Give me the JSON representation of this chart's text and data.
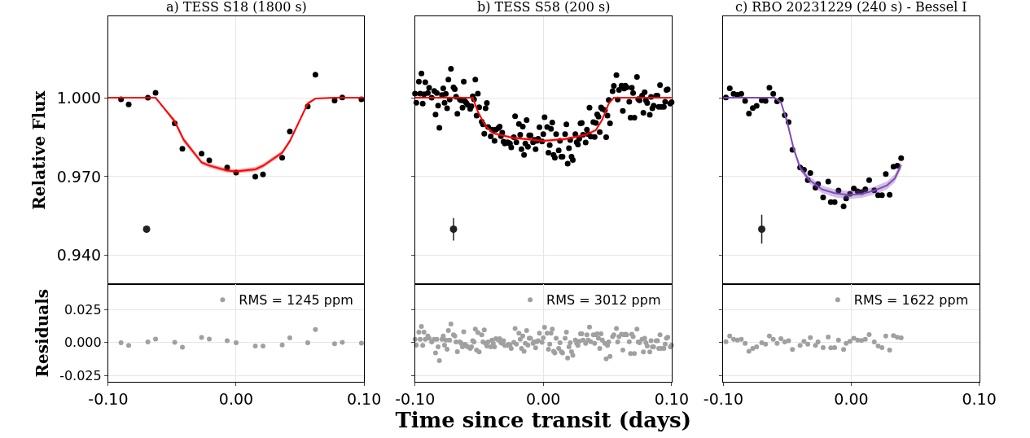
{
  "chart_data": [
    {
      "type": "scatter",
      "title": "a) TESS S18 (1800 s)",
      "ylabel": "Relative Flux",
      "xlim": [
        -0.1,
        0.1
      ],
      "xticks": [
        {
          "value": -0.1,
          "label": null
        },
        {
          "value": 0,
          "label": null
        },
        {
          "value": 0.1,
          "label": null
        }
      ],
      "ylim": [
        0.929,
        1.031
      ],
      "yticks": [
        {
          "value": 0.94,
          "label": "0.940"
        },
        {
          "value": 0.97,
          "label": "0.970"
        },
        {
          "value": 1.0,
          "label": "1.000"
        }
      ],
      "grid": true,
      "tick_labels": "y",
      "x": [
        -0.09,
        -0.084,
        -0.069,
        -0.063,
        -0.048,
        -0.042,
        -0.027,
        -0.021,
        -0.007,
        0.0,
        0.015,
        0.021,
        0.036,
        0.042,
        0.056,
        0.062,
        0.077,
        0.083,
        0.098
      ],
      "series": [
        {
          "color": "#000000",
          "marker": "circle",
          "values": [
            0.9994,
            0.9975,
            1.0,
            1.0019,
            0.9903,
            0.9806,
            0.9787,
            0.9762,
            0.9735,
            0.9715,
            0.97,
            0.9708,
            0.9772,
            0.9872,
            0.9967,
            1.0088,
            0.9989,
            1.0001,
            0.9994
          ]
        },
        {
          "type": "line",
          "color": "#ff0000",
          "marker": "none",
          "x": [
            -0.1,
            -0.063,
            -0.048,
            -0.041,
            -0.027,
            -0.021,
            -0.007,
            0.0,
            0.015,
            0.021,
            0.036,
            0.042,
            0.056,
            0.062,
            0.077,
            0.1
          ],
          "values": [
            1.0,
            1.0,
            0.991,
            0.984,
            0.9754,
            0.9742,
            0.9723,
            0.972,
            0.9728,
            0.9741,
            0.9791,
            0.9835,
            0.9978,
            0.9997,
            1.0,
            1.0
          ],
          "lower": [
            1.0,
            1.0,
            0.99,
            0.983,
            0.9746,
            0.9734,
            0.9715,
            0.9712,
            0.972,
            0.9733,
            0.9783,
            0.9827,
            0.9971,
            0.9995,
            1.0,
            1.0
          ],
          "upper": [
            1.0,
            1.0,
            0.992,
            0.985,
            0.9762,
            0.975,
            0.9731,
            0.9728,
            0.9736,
            0.9749,
            0.9799,
            0.9843,
            0.9985,
            0.9999,
            1.0,
            1.0
          ]
        },
        {
          "color": "#222222",
          "marker": "circle",
          "x": [
            -0.07
          ],
          "values": [
            0.95
          ],
          "errors": [
            0.0008
          ]
        }
      ]
    },
    {
      "type": "scatter",
      "title": "b) TESS S58 (200 s)",
      "xlim": [
        -0.1,
        0.1
      ],
      "xticks": [
        {
          "value": -0.1,
          "label": null
        },
        {
          "value": 0,
          "label": null
        },
        {
          "value": 0.1,
          "label": null
        }
      ],
      "ylim": [
        0.929,
        1.031
      ],
      "yticks": [
        {
          "value": 0.94,
          "label": null
        },
        {
          "value": 0.97,
          "label": null
        },
        {
          "value": 1.0,
          "label": null
        }
      ],
      "grid": true,
      "tick_labels": false,
      "x": [
        -0.1,
        -0.099,
        -0.097,
        -0.096,
        -0.095,
        -0.094,
        -0.093,
        -0.092,
        -0.09,
        -0.089,
        -0.087,
        -0.085,
        -0.084,
        -0.083,
        -0.082,
        -0.081,
        -0.079,
        -0.078,
        -0.077,
        -0.076,
        -0.075,
        -0.074,
        -0.073,
        -0.072,
        -0.07,
        -0.069,
        -0.068,
        -0.067,
        -0.065,
        -0.064,
        -0.063,
        -0.062,
        -0.061,
        -0.06,
        -0.059,
        -0.057,
        -0.056,
        -0.055,
        -0.054,
        -0.053,
        -0.052,
        -0.051,
        -0.05,
        -0.048,
        -0.047,
        -0.046,
        -0.045,
        -0.044,
        -0.043,
        -0.041,
        -0.04,
        -0.039,
        -0.038,
        -0.037,
        -0.035,
        -0.034,
        -0.033,
        -0.032,
        -0.031,
        -0.03,
        -0.028,
        -0.027,
        -0.026,
        -0.025,
        -0.023,
        -0.022,
        -0.021,
        -0.019,
        -0.018,
        -0.017,
        -0.016,
        -0.015,
        -0.014,
        -0.013,
        -0.012,
        -0.011,
        -0.01,
        -0.008,
        -0.007,
        -0.006,
        -0.005,
        -0.004,
        -0.003,
        -0.001,
        0.0,
        0.001,
        0.003,
        0.004,
        0.005,
        0.006,
        0.007,
        0.008,
        0.009,
        0.01,
        0.012,
        0.013,
        0.014,
        0.015,
        0.017,
        0.018,
        0.019,
        0.02,
        0.021,
        0.022,
        0.023,
        0.025,
        0.026,
        0.027,
        0.028,
        0.029,
        0.03,
        0.031,
        0.033,
        0.034,
        0.035,
        0.036,
        0.037,
        0.039,
        0.04,
        0.041,
        0.042,
        0.043,
        0.044,
        0.045,
        0.046,
        0.048,
        0.049,
        0.05,
        0.051,
        0.052,
        0.054,
        0.055,
        0.057,
        0.058,
        0.059,
        0.061,
        0.062,
        0.063,
        0.064,
        0.065,
        0.067,
        0.068,
        0.069,
        0.07,
        0.071,
        0.073,
        0.074,
        0.075,
        0.077,
        0.078,
        0.079,
        0.08,
        0.081,
        0.083,
        0.084,
        0.085,
        0.086,
        0.088,
        0.089,
        0.09,
        0.091,
        0.092,
        0.094,
        0.095,
        0.096,
        0.097,
        0.099,
        0.1
      ],
      "series": [
        {
          "color": "#000000",
          "marker": "circle",
          "values": [
            1.0016,
            0.9981,
            1.0061,
            1.0016,
            1.0092,
            0.9978,
            1.0013,
            1.0059,
            1.0018,
            1.0038,
            1.0,
            1.0026,
            0.9936,
            1.0018,
            0.997,
            0.9886,
            1.001,
            1.0036,
            0.9981,
            1.0015,
            0.996,
            1.0069,
            0.9993,
            1.011,
            1.004,
            1.0033,
            1.0004,
            0.9939,
            0.9993,
            0.999,
            0.9962,
            1.0061,
            0.9986,
            0.998,
            0.9973,
            0.9958,
            0.9968,
            1.0006,
            0.9994,
            1.0069,
            0.9932,
            1.0016,
            0.9964,
            0.9909,
            0.9899,
            0.9863,
            0.996,
            0.998,
            0.9889,
            0.9853,
            0.9879,
            0.9877,
            0.9836,
            0.9879,
            0.9885,
            0.989,
            0.9854,
            0.9867,
            0.9833,
            0.9826,
            0.9831,
            0.9828,
            0.9826,
            0.9811,
            0.985,
            0.993,
            0.9831,
            0.99,
            0.9859,
            0.9804,
            0.989,
            0.9783,
            0.9826,
            0.9915,
            0.9814,
            0.9857,
            0.9857,
            0.9831,
            0.984,
            0.9804,
            0.9836,
            0.9844,
            0.9888,
            0.9834,
            0.9862,
            0.9926,
            0.9889,
            0.9791,
            0.982,
            0.9882,
            0.9906,
            0.9783,
            0.9772,
            0.9862,
            0.98,
            0.9836,
            0.9776,
            0.9776,
            0.9862,
            0.9899,
            0.9749,
            0.9808,
            0.9839,
            0.9776,
            0.9763,
            0.9862,
            0.9831,
            0.9822,
            0.9844,
            0.9903,
            0.9904,
            0.9859,
            0.983,
            0.9879,
            0.9862,
            0.9962,
            0.9852,
            0.9907,
            0.9851,
            0.9904,
            0.9937,
            0.9928,
            0.9869,
            0.9963,
            0.9958,
            0.9953,
            0.985,
            0.9932,
            0.9992,
            0.9903,
            1.0025,
            1.0045,
            1.0086,
            0.9993,
            1.003,
            1.0046,
            0.995,
            1.0035,
            1.0046,
            1.004,
            0.9985,
            0.9924,
            1.0038,
            1.0018,
            0.9924,
            1.0079,
            0.9995,
            0.999,
            1.0008,
            0.9943,
            1.0021,
            0.999,
            0.998,
            0.9935,
            1.0003,
            0.996,
            0.997,
            1.0008,
            1.0008,
            0.9965,
            1.0048,
            0.9965,
            0.9965,
            0.9985,
            1.003,
            1.0032,
            0.9978,
            0.9983
          ]
        },
        {
          "type": "line",
          "color": "#ff0000",
          "marker": "none",
          "x": [
            -0.1,
            -0.055,
            -0.051,
            -0.045,
            -0.039,
            -0.024,
            0.0,
            0.017,
            0.033,
            0.041,
            0.046,
            0.051,
            0.055,
            0.1
          ],
          "values": [
            1.0,
            1.0,
            0.9947,
            0.9892,
            0.9865,
            0.9848,
            0.9836,
            0.9843,
            0.9859,
            0.9877,
            0.9917,
            0.9978,
            1.0,
            1.0
          ],
          "lower": [
            1.0,
            1.0,
            0.9942,
            0.9887,
            0.986,
            0.9843,
            0.9831,
            0.9838,
            0.9854,
            0.9872,
            0.9912,
            0.9973,
            1.0,
            1.0
          ],
          "upper": [
            1.0,
            1.0,
            0.9952,
            0.9897,
            0.987,
            0.9853,
            0.9841,
            0.9848,
            0.9864,
            0.9882,
            0.9922,
            0.9983,
            1.0,
            1.0
          ]
        },
        {
          "color": "#222222",
          "marker": "circle",
          "x": [
            -0.07
          ],
          "values": [
            0.95
          ],
          "errors": [
            0.0043
          ]
        }
      ]
    },
    {
      "type": "scatter",
      "title": "c) RBO 20231229 (240 s) - Bessel I",
      "xlim": [
        -0.1,
        0.1
      ],
      "xticks": [
        {
          "value": -0.1,
          "label": null
        },
        {
          "value": 0,
          "label": null
        },
        {
          "value": 0.1,
          "label": null
        }
      ],
      "ylim": [
        0.929,
        1.031
      ],
      "yticks": [
        {
          "value": 0.94,
          "label": null
        },
        {
          "value": 0.97,
          "label": null
        },
        {
          "value": 1.0,
          "label": null
        }
      ],
      "grid": true,
      "tick_labels": false,
      "x": [
        -0.098,
        -0.095,
        -0.092,
        -0.089,
        -0.086,
        -0.083,
        -0.08,
        -0.077,
        -0.074,
        -0.07,
        -0.067,
        -0.064,
        -0.061,
        -0.058,
        -0.055,
        -0.052,
        -0.049,
        -0.046,
        -0.04,
        -0.037,
        -0.034,
        -0.032,
        -0.028,
        -0.026,
        -0.022,
        -0.018,
        -0.016,
        -0.013,
        -0.01,
        -0.006,
        -0.004,
        -0.001,
        0.002,
        0.005,
        0.008,
        0.011,
        0.014,
        0.018,
        0.021,
        0.024,
        0.027,
        0.03,
        0.033,
        0.036,
        0.039
      ],
      "series": [
        {
          "color": "#000000",
          "marker": "circle",
          "values": [
            1.0001,
            1.0036,
            1.0015,
            1.0011,
            1.0015,
            0.9988,
            0.994,
            0.9961,
            0.9969,
            0.999,
            0.9988,
            1.0038,
            1.0015,
            0.9986,
            0.9993,
            0.9934,
            0.9907,
            0.9802,
            0.9735,
            0.9726,
            0.9687,
            0.9714,
            0.9658,
            0.9672,
            0.9621,
            0.9681,
            0.9603,
            0.9603,
            0.9647,
            0.9587,
            0.9617,
            0.9635,
            0.9655,
            0.9644,
            0.9641,
            0.9652,
            0.9687,
            0.9648,
            0.9629,
            0.9629,
            0.971,
            0.9631,
            0.9738,
            0.9742,
            0.977
          ]
        },
        {
          "type": "line",
          "color": "#7e4bb8",
          "marker": "none",
          "x": [
            -0.1,
            -0.06,
            -0.055,
            -0.05,
            -0.045,
            -0.04,
            -0.033,
            -0.023,
            -0.013,
            -0.002,
            0.008,
            0.018,
            0.028,
            0.034,
            0.039
          ],
          "values": [
            1.0,
            1.0,
            0.9983,
            0.9906,
            0.9805,
            0.9734,
            0.9688,
            0.9652,
            0.9637,
            0.963,
            0.9634,
            0.9647,
            0.9667,
            0.9693,
            0.9744
          ],
          "lower": [
            1.0,
            1.0,
            0.9978,
            0.9896,
            0.9795,
            0.9722,
            0.9675,
            0.9638,
            0.9622,
            0.9615,
            0.9619,
            0.9632,
            0.9652,
            0.9678,
            0.9729
          ],
          "upper": [
            1.0,
            1.0,
            0.9988,
            0.9916,
            0.9815,
            0.9746,
            0.9701,
            0.9666,
            0.9652,
            0.9645,
            0.9649,
            0.9662,
            0.9682,
            0.9708,
            0.9759
          ]
        },
        {
          "color": "#222222",
          "marker": "circle",
          "x": [
            -0.07
          ],
          "values": [
            0.95
          ],
          "errors": [
            0.0055
          ]
        }
      ]
    },
    {
      "type": "scatter",
      "ylabel": "Residuals",
      "xlim": [
        -0.1,
        0.1
      ],
      "xticks": [
        {
          "value": -0.1,
          "label": "-0.10"
        },
        {
          "value": 0,
          "label": "0.00"
        },
        {
          "value": 0.1,
          "label": "0.10"
        }
      ],
      "ylim": [
        -0.03,
        0.044
      ],
      "yticks": [
        {
          "value": -0.025,
          "label": "-0.025"
        },
        {
          "value": 0,
          "label": "0.000"
        },
        {
          "value": 0.025,
          "label": "0.025"
        }
      ],
      "grid": true,
      "legend": "top right",
      "x": [
        -0.09,
        -0.084,
        -0.069,
        -0.063,
        -0.048,
        -0.042,
        -0.027,
        -0.021,
        -0.007,
        0.0,
        0.015,
        0.021,
        0.036,
        0.042,
        0.056,
        0.062,
        0.077,
        0.083,
        0.098
      ],
      "series": [
        {
          "name": "RMS = 1245 ppm",
          "color": "#a0a0a0",
          "marker": "circle",
          "values": [
            -0.0002,
            -0.0023,
            0.0004,
            0.0025,
            0.0,
            -0.0036,
            0.0038,
            0.0025,
            0.0013,
            -0.0002,
            -0.0027,
            -0.0027,
            -0.0019,
            0.0034,
            -0.0002,
            0.0097,
            -0.001,
            0.0,
            -0.0006
          ]
        }
      ]
    },
    {
      "type": "scatter",
      "xlabel": "Time since transit (days)",
      "xlim": [
        -0.1,
        0.1
      ],
      "xticks": [
        {
          "value": -0.1,
          "label": "-0.10"
        },
        {
          "value": 0,
          "label": "0.00"
        },
        {
          "value": 0.1,
          "label": "0.10"
        }
      ],
      "ylim": [
        -0.03,
        0.044
      ],
      "yticks": [
        {
          "value": -0.025,
          "label": null
        },
        {
          "value": 0,
          "label": null
        },
        {
          "value": 0.025,
          "label": null
        }
      ],
      "grid": true,
      "legend": "top right",
      "tick_labels": "x",
      "x": [
        -0.1,
        -0.099,
        -0.097,
        -0.096,
        -0.095,
        -0.094,
        -0.093,
        -0.092,
        -0.09,
        -0.089,
        -0.087,
        -0.085,
        -0.084,
        -0.083,
        -0.082,
        -0.081,
        -0.079,
        -0.078,
        -0.077,
        -0.076,
        -0.075,
        -0.074,
        -0.073,
        -0.072,
        -0.07,
        -0.069,
        -0.068,
        -0.067,
        -0.065,
        -0.064,
        -0.063,
        -0.062,
        -0.061,
        -0.06,
        -0.059,
        -0.057,
        -0.056,
        -0.055,
        -0.054,
        -0.053,
        -0.052,
        -0.051,
        -0.05,
        -0.048,
        -0.047,
        -0.046,
        -0.045,
        -0.044,
        -0.043,
        -0.041,
        -0.04,
        -0.039,
        -0.038,
        -0.037,
        -0.035,
        -0.034,
        -0.033,
        -0.032,
        -0.031,
        -0.03,
        -0.028,
        -0.027,
        -0.026,
        -0.025,
        -0.023,
        -0.022,
        -0.021,
        -0.019,
        -0.018,
        -0.017,
        -0.016,
        -0.015,
        -0.014,
        -0.013,
        -0.012,
        -0.011,
        -0.01,
        -0.008,
        -0.007,
        -0.006,
        -0.005,
        -0.004,
        -0.003,
        -0.001,
        0.0,
        0.001,
        0.003,
        0.004,
        0.005,
        0.006,
        0.007,
        0.008,
        0.009,
        0.01,
        0.012,
        0.013,
        0.014,
        0.015,
        0.017,
        0.018,
        0.019,
        0.02,
        0.021,
        0.022,
        0.023,
        0.025,
        0.026,
        0.027,
        0.028,
        0.029,
        0.03,
        0.031,
        0.033,
        0.034,
        0.035,
        0.036,
        0.037,
        0.039,
        0.04,
        0.041,
        0.042,
        0.043,
        0.044,
        0.045,
        0.046,
        0.048,
        0.049,
        0.05,
        0.051,
        0.052,
        0.054,
        0.055,
        0.057,
        0.058,
        0.059,
        0.061,
        0.062,
        0.063,
        0.064,
        0.065,
        0.067,
        0.068,
        0.069,
        0.07,
        0.071,
        0.073,
        0.074,
        0.075,
        0.077,
        0.078,
        0.079,
        0.08,
        0.081,
        0.083,
        0.084,
        0.085,
        0.086,
        0.088,
        0.089,
        0.09,
        0.091,
        0.092,
        0.094,
        0.095,
        0.096,
        0.097,
        0.099,
        0.1
      ],
      "series": [
        {
          "name": "RMS = 3012 ppm",
          "color": "#a0a0a0",
          "marker": "circle",
          "values": [
            0.0023,
            -0.0021,
            0.0077,
            0.0023,
            0.0121,
            -0.0023,
            0.0077,
            0.0023,
            0.0049,
            0.0031,
            0.0003,
            0.0023,
            -0.008,
            0.0023,
            -0.0034,
            -0.0139,
            0.0023,
            0.0049,
            -0.0021,
            0.0018,
            -0.0052,
            0.009,
            0.0018,
            0.0139,
            0.0057,
            0.0049,
            0.0003,
            -0.007,
            0.0003,
            -0.0008,
            -0.0034,
            0.008,
            -0.0015,
            -0.0026,
            -0.0034,
            -0.0046,
            -0.0034,
            0.0013,
            0.0003,
            0.0101,
            -0.0059,
            0.0075,
            -0.0072,
            0.0057,
            0.0003,
            0.0095,
            -0.0008,
            -0.0028,
            0.0003,
            -0.0034,
            0.0018,
            -0.0008,
            -0.0034,
            0.0028,
            0.0018,
            0.0028,
            -0.0003,
            -0.0008,
            0.0013,
            -0.0023,
            -0.0023,
            -0.0015,
            -0.0018,
            -0.0046,
            0.0,
            0.0106,
            -0.0013,
            0.007,
            0.0023,
            -0.0046,
            0.0049,
            -0.0067,
            -0.0008,
            0.009,
            -0.0021,
            0.0031,
            0.0031,
            -0.0008,
            0.0005,
            -0.0041,
            0.0005,
            0.0013,
            0.007,
            0.0,
            0.0034,
            0.0114,
            0.007,
            -0.0052,
            -0.0013,
            0.007,
            0.0101,
            -0.0067,
            -0.008,
            0.0031,
            -0.0046,
            -0.0003,
            -0.007,
            -0.008,
            0.0031,
            0.0077,
            -0.0119,
            -0.0034,
            -0.0003,
            -0.007,
            -0.0098,
            0.0018,
            -0.0008,
            -0.0023,
            0.0008,
            0.0065,
            0.0065,
            0.0018,
            -0.0008,
            0.0057,
            0.0018,
            0.0116,
            0.0005,
            0.0057,
            -0.0008,
            0.0057,
            0.0065,
            0.0031,
            -0.0046,
            0.0065,
            0.0018,
            -0.0008,
            -0.0124,
            -0.0023,
            0.0003,
            -0.0106,
            0.0044,
            0.0057,
            0.0106,
            0.0003,
            0.0044,
            0.0062,
            -0.0059,
            0.0057,
            0.0062,
            0.0057,
            0.0005,
            -0.0085,
            0.0062,
            0.0044,
            -0.0085,
            0.0101,
            0.0003,
            -0.0003,
            0.0023,
            -0.0072,
            0.0031,
            -0.0003,
            -0.0028,
            -0.0072,
            0.0013,
            -0.0034,
            -0.0034,
            0.0013,
            0.0013,
            -0.0046,
            0.0057,
            -0.0046,
            -0.0046,
            -0.0013,
            0.0031,
            0.0039,
            -0.0034,
            -0.0021
          ]
        }
      ]
    },
    {
      "type": "scatter",
      "xlim": [
        -0.1,
        0.1
      ],
      "xticks": [
        {
          "value": -0.1,
          "label": "-0.10"
        },
        {
          "value": 0,
          "label": "0.00"
        },
        {
          "value": 0.1,
          "label": "0.10"
        }
      ],
      "ylim": [
        -0.03,
        0.044
      ],
      "yticks": [
        {
          "value": -0.025,
          "label": null
        },
        {
          "value": 0,
          "label": null
        },
        {
          "value": 0.025,
          "label": null
        }
      ],
      "grid": true,
      "legend": "top right",
      "tick_labels": "x",
      "x": [
        -0.098,
        -0.095,
        -0.092,
        -0.089,
        -0.086,
        -0.083,
        -0.08,
        -0.077,
        -0.074,
        -0.07,
        -0.067,
        -0.064,
        -0.061,
        -0.058,
        -0.055,
        -0.052,
        -0.049,
        -0.046,
        -0.04,
        -0.037,
        -0.034,
        -0.032,
        -0.028,
        -0.026,
        -0.022,
        -0.018,
        -0.016,
        -0.013,
        -0.01,
        -0.006,
        -0.004,
        -0.001,
        0.002,
        0.005,
        0.008,
        0.011,
        0.014,
        0.018,
        0.021,
        0.024,
        0.027,
        0.03,
        0.033,
        0.036,
        0.039
      ],
      "series": [
        {
          "name": "RMS = 1622 ppm",
          "color": "#a0a0a0",
          "marker": "circle",
          "values": [
            0.0005,
            0.0049,
            0.0023,
            0.0018,
            0.0023,
            -0.0008,
            -0.0067,
            -0.0046,
            -0.0034,
            -0.0003,
            -0.0013,
            0.0049,
            0.0023,
            -0.0008,
            0.0028,
            0.0003,
            0.0013,
            -0.0054,
            -0.0023,
            0.0008,
            -0.0013,
            0.0036,
            -0.0023,
            0.0003,
            -0.0039,
            0.0041,
            -0.0041,
            -0.0039,
            0.0018,
            -0.0054,
            -0.0008,
            0.0008,
            0.0031,
            0.0018,
            0.0015,
            0.0023,
            0.0059,
            0.0003,
            -0.0028,
            -0.0039,
            0.0049,
            -0.0059,
            0.0052,
            0.0039,
            0.0034
          ]
        }
      ]
    }
  ]
}
